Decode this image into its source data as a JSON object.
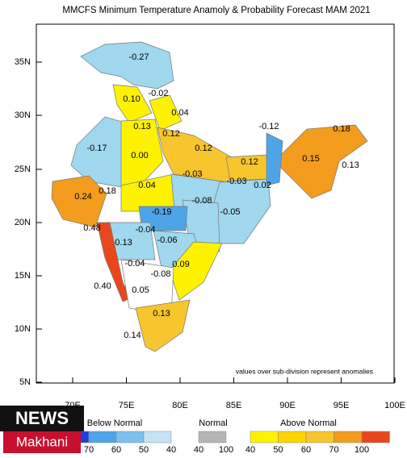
{
  "title": "MMCFS  Minimum Temperature Anamoly & Probability Forecast MAM 2021",
  "lat_labels": [
    "35N",
    "30N",
    "25N",
    "20N",
    "15N",
    "10N",
    "5N"
  ],
  "lon_labels": [
    "70E",
    "75E",
    "80E",
    "85E",
    "90E",
    "95E",
    "100E"
  ],
  "regions": [
    "-0.27",
    "-0.02",
    "0.10",
    "0.04",
    "0.13",
    "0.12",
    "0.12",
    "-0.12",
    "0.18",
    "-0.17",
    "0.00",
    "0.15",
    "0.13",
    "0.24",
    "0.18",
    "0.04",
    "-0.03",
    "0.12",
    "-0.08",
    "-0.03",
    "0.02",
    "-0.05",
    "-0.19",
    "0.48",
    "-0.04",
    "0.13",
    "-0.06",
    "-0.04",
    "0.09",
    "-0.08",
    "0.40",
    "0.05",
    "0.13",
    "0.14"
  ],
  "note": "values over sub-division represent anomalies",
  "legend": {
    "below": {
      "label": "Below Normal",
      "ticks": [
        "70",
        "60",
        "50",
        "40"
      ]
    },
    "normal": {
      "label": "Normal",
      "ticks": [
        "40",
        "100"
      ]
    },
    "above": {
      "label": "Above Normal",
      "ticks": [
        "40",
        "50",
        "60",
        "70",
        "100"
      ]
    }
  },
  "logo": {
    "top": "NEWS",
    "bottom": "Makhani"
  }
}
